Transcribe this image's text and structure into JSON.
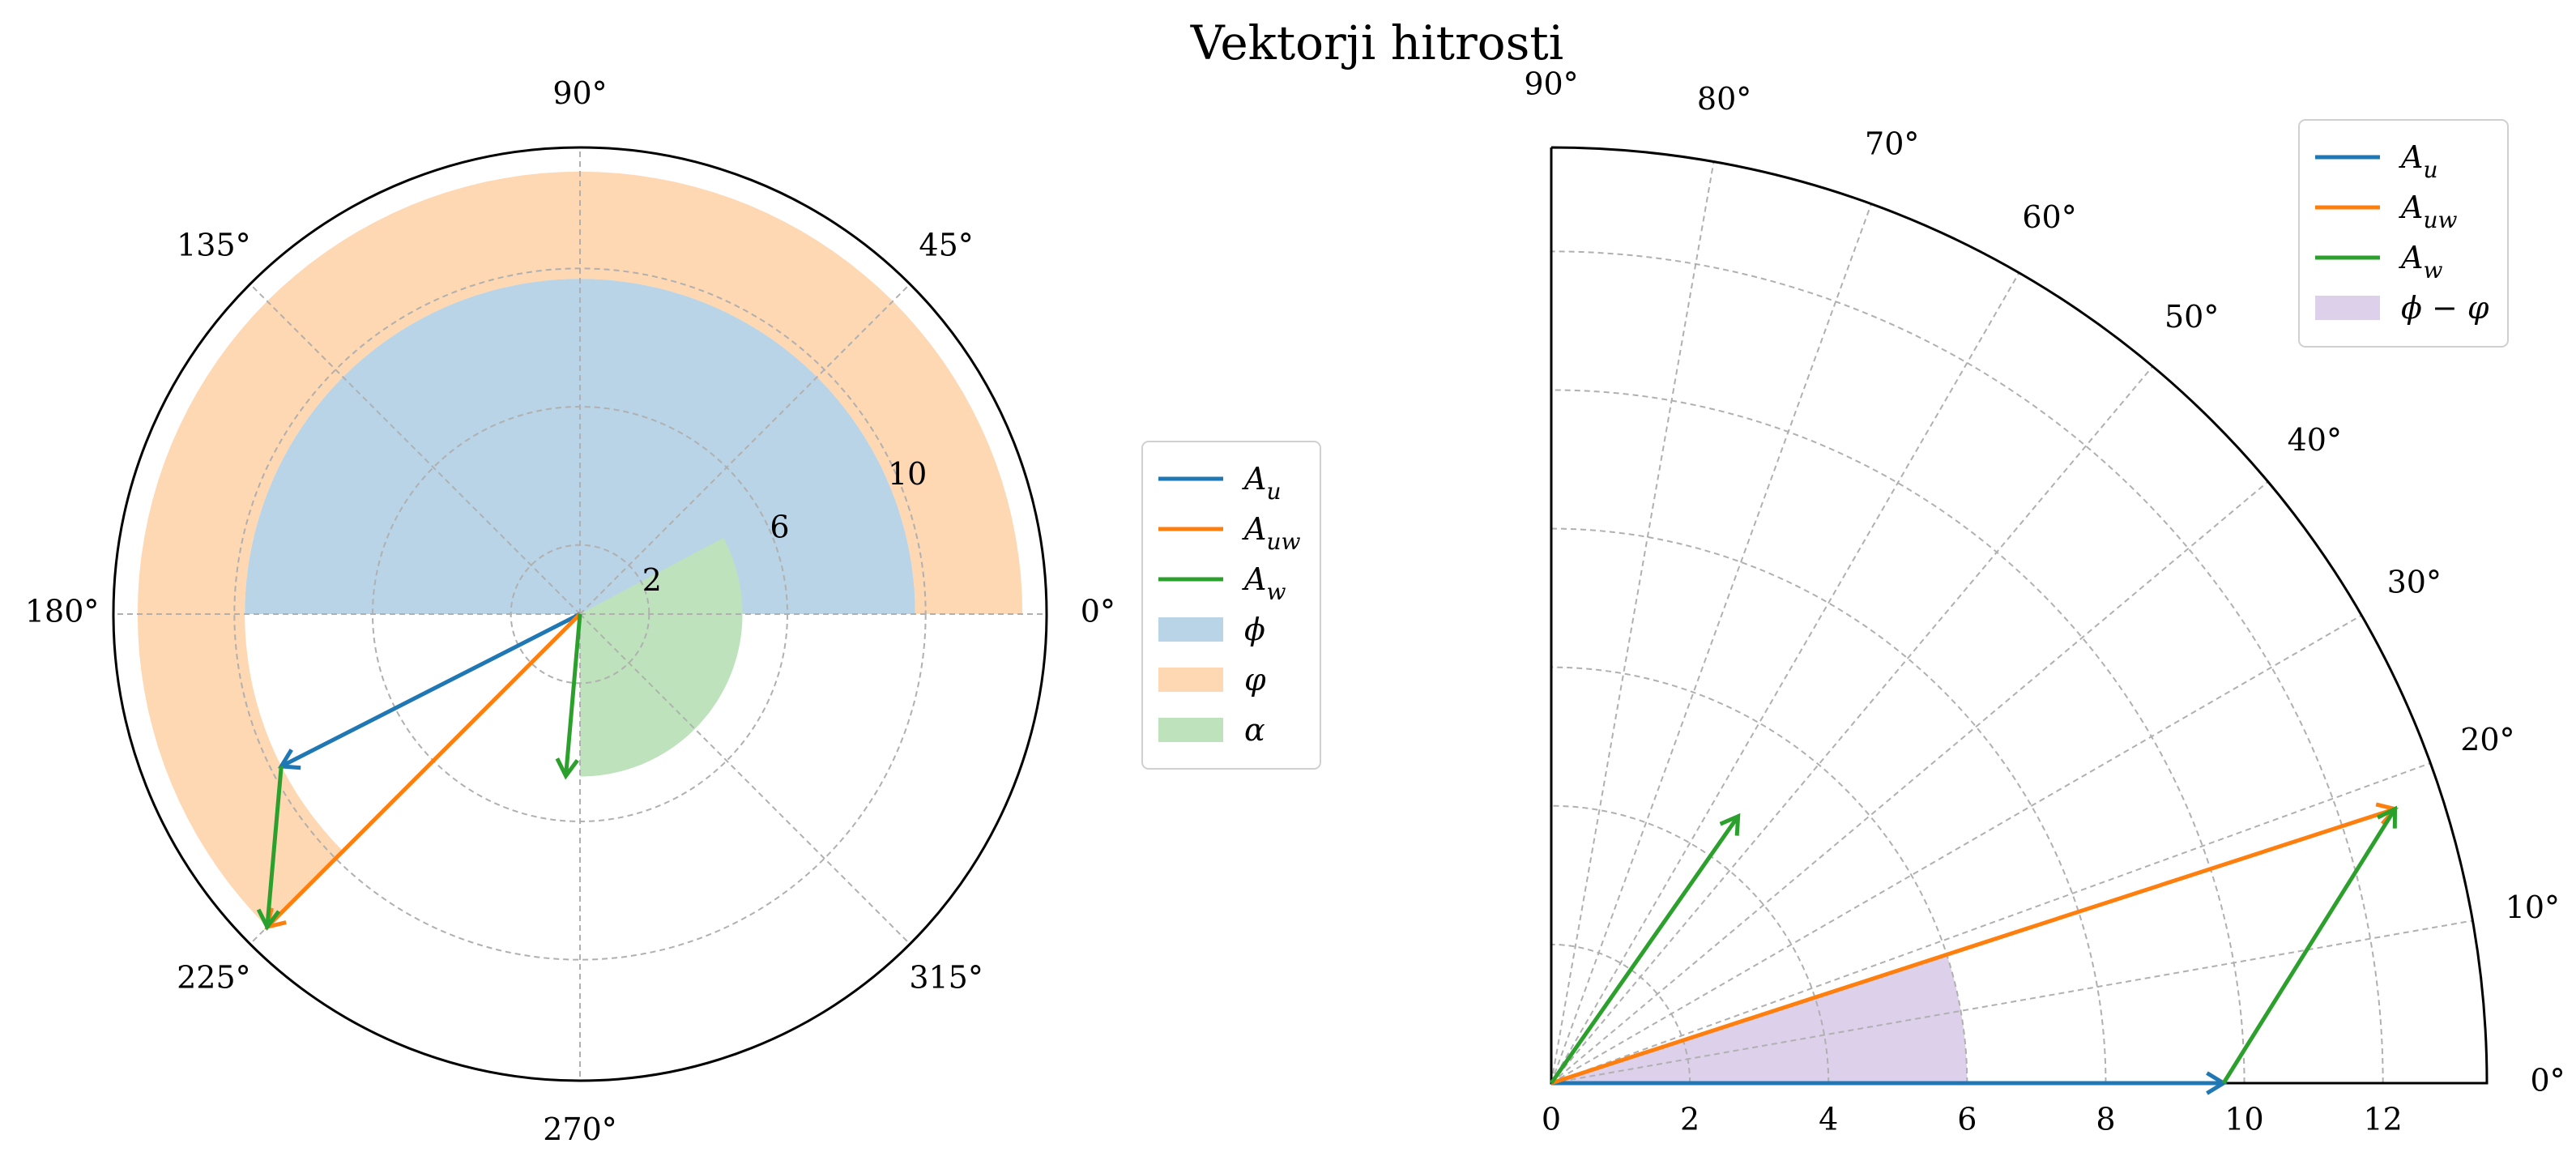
{
  "title": "Vektorji hitrosti",
  "colors": {
    "A_u": "#1f77b4",
    "A_uw": "#ff7f0e",
    "A_w": "#2ca02c",
    "phi_fill": "#b9d4e7",
    "varphi_fill": "#fed7b3",
    "alpha_fill": "#bee3bc",
    "diff_fill": "#ddd0ea"
  },
  "chart_data": [
    {
      "type": "polar",
      "theta_ticks": [
        "0°",
        "45°",
        "90°",
        "135°",
        "180°",
        "225°",
        "270°",
        "315°"
      ],
      "r_ticks": [
        "2",
        "6",
        "10"
      ],
      "rlim": [
        0,
        13.5
      ],
      "grid": true,
      "legend_position": "right",
      "legend": [
        {
          "key": "A_u",
          "label": "A_u",
          "kind": "line"
        },
        {
          "key": "A_uw",
          "label": "A_uw",
          "kind": "line"
        },
        {
          "key": "A_w",
          "label": "A_w",
          "kind": "line"
        },
        {
          "key": "phi",
          "label": "ϕ",
          "kind": "patch"
        },
        {
          "key": "varphi",
          "label": "φ",
          "kind": "patch"
        },
        {
          "key": "alpha",
          "label": "α",
          "kind": "patch"
        }
      ],
      "vectors": [
        {
          "series": "A_u",
          "from": {
            "theta": 0,
            "r": 0
          },
          "to": {
            "theta": 207,
            "r": 9.7
          }
        },
        {
          "series": "A_uw",
          "from": {
            "theta": 0,
            "r": 0
          },
          "to": {
            "theta": 225,
            "r": 12.8
          }
        },
        {
          "series": "A_w",
          "from": {
            "theta": 207,
            "r": 9.7
          },
          "to": {
            "theta": 225,
            "r": 12.8
          }
        },
        {
          "series": "A_w",
          "from": {
            "theta": 0,
            "r": 0
          },
          "to": {
            "theta": 265,
            "r": 4.7
          }
        }
      ],
      "sectors": [
        {
          "series": "phi",
          "theta1": 0,
          "theta2": 180,
          "r": 9.7
        },
        {
          "series": "varphi",
          "theta1": 0,
          "theta2": 225,
          "r_inner": 9.7,
          "r_outer": 12.8
        },
        {
          "series": "alpha",
          "theta1": -90,
          "theta2": 28,
          "r": 4.7
        }
      ]
    },
    {
      "type": "polar",
      "theta_range_deg": [
        0,
        90
      ],
      "theta_ticks": [
        "0°",
        "10°",
        "20°",
        "30°",
        "40°",
        "50°",
        "60°",
        "70°",
        "80°",
        "90°"
      ],
      "r_ticks": [
        "0",
        "2",
        "4",
        "6",
        "8",
        "10",
        "12"
      ],
      "rlim": [
        0,
        13.5
      ],
      "grid": true,
      "legend_position": "top-right",
      "legend": [
        {
          "key": "A_u",
          "label": "A_u",
          "kind": "line"
        },
        {
          "key": "A_uw",
          "label": "A_uw",
          "kind": "line"
        },
        {
          "key": "A_w",
          "label": "A_w",
          "kind": "line"
        },
        {
          "key": "diff",
          "label": "ϕ − φ",
          "kind": "patch"
        }
      ],
      "vectors": [
        {
          "series": "A_u",
          "from": {
            "theta": 0,
            "r": 0
          },
          "to": {
            "theta": 0,
            "r": 9.7
          }
        },
        {
          "series": "A_uw",
          "from": {
            "theta": 0,
            "r": 0
          },
          "to": {
            "theta": 18,
            "r": 12.8
          }
        },
        {
          "series": "A_w",
          "from": {
            "theta": 0,
            "r": 9.7
          },
          "to": {
            "theta": 18,
            "r": 12.8
          }
        },
        {
          "series": "A_w",
          "from": {
            "theta": 0,
            "r": 0
          },
          "to": {
            "theta": 55,
            "r": 4.7
          }
        }
      ],
      "sectors": [
        {
          "series": "diff",
          "theta1": 0,
          "theta2": 18,
          "r": 6
        }
      ]
    }
  ]
}
